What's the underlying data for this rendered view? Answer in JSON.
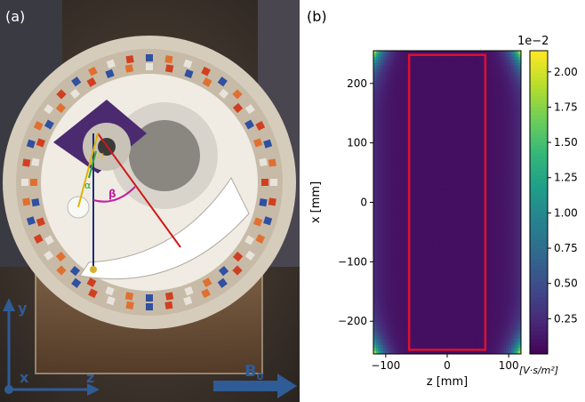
{
  "panel_a": {
    "label": "(a)",
    "angle_alpha": "α",
    "angle_beta": "β",
    "axis_y": "y",
    "axis_x": "x",
    "axis_z": "z",
    "field_label": "B",
    "field_subscript": "0",
    "colors": {
      "background": "#3a3634",
      "ring": "#d8cfc0",
      "bore": "#f1ede4",
      "holder": "#4a2a6e",
      "axis_arrows": "#2f5c96",
      "line_red": "#d01818",
      "line_navy": "#1c2d78",
      "line_yellow": "#e0b400",
      "line_magenta": "#c020a0",
      "line_green": "#2fa040"
    }
  },
  "panel_b": {
    "label": "(b)",
    "colorbar_ticks": [
      "0.25",
      "0.50",
      "0.75",
      "1.00",
      "1.25",
      "1.50",
      "1.75",
      "2.00"
    ],
    "colorbar_exponent": "1e−2",
    "colorbar_unit": "[V·s/m²]",
    "colormap": "viridis",
    "highlight_color": "#e0102a"
  },
  "chart_data": {
    "type": "heatmap",
    "xlabel": "z [mm]",
    "ylabel": "x [mm]",
    "xlim": [
      -120,
      120
    ],
    "ylim": [
      -255,
      255
    ],
    "xticks": [
      "−100",
      "0",
      "100"
    ],
    "yticks": [
      "200",
      "100",
      "0",
      "−100",
      "−200"
    ],
    "clim": [
      0,
      0.0215
    ],
    "highlight_rect": {
      "z": [
        -62,
        62
      ],
      "x": [
        -248,
        248
      ]
    },
    "field_description": "near-zero in center, rising toward z edges and strongest at the four corners",
    "corner_peak": 0.021
  }
}
